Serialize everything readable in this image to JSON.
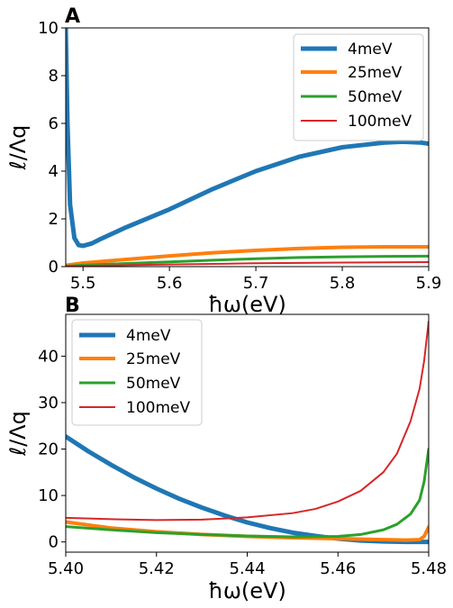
{
  "chart_data": [
    {
      "type": "line",
      "panel_label": "A",
      "xlabel": "ħω(eV)",
      "ylabel": "ℓ/Λq",
      "xlim": [
        5.48,
        5.9
      ],
      "ylim": [
        0,
        10
      ],
      "x_ticks": [
        5.5,
        5.6,
        5.7,
        5.8,
        5.9
      ],
      "y_ticks": [
        0,
        2,
        4,
        6,
        8,
        10
      ],
      "x_tick_labels": [
        "5.5",
        "5.6",
        "5.7",
        "5.8",
        "5.9"
      ],
      "y_tick_labels": [
        "0",
        "2",
        "4",
        "6",
        "8",
        "10"
      ],
      "legend_position": "top-right",
      "grid": false,
      "series": [
        {
          "name": "4meV",
          "color": "#1f77b4",
          "line_width": 5,
          "x": [
            5.48,
            5.482,
            5.485,
            5.49,
            5.495,
            5.5,
            5.51,
            5.52,
            5.55,
            5.6,
            5.65,
            5.7,
            5.75,
            5.8,
            5.85,
            5.87,
            5.89,
            5.9
          ],
          "y": [
            10,
            6,
            2.6,
            1.2,
            0.9,
            0.87,
            0.97,
            1.15,
            1.65,
            2.4,
            3.25,
            4.0,
            4.6,
            5.0,
            5.2,
            5.23,
            5.2,
            5.15
          ]
        },
        {
          "name": "25meV",
          "color": "#ff7f0e",
          "line_width": 4,
          "x": [
            5.48,
            5.5,
            5.55,
            5.6,
            5.65,
            5.7,
            5.75,
            5.8,
            5.85,
            5.9
          ],
          "y": [
            0.05,
            0.15,
            0.3,
            0.45,
            0.58,
            0.68,
            0.76,
            0.81,
            0.83,
            0.83
          ]
        },
        {
          "name": "50meV",
          "color": "#2ca02c",
          "line_width": 3,
          "x": [
            5.48,
            5.5,
            5.55,
            5.6,
            5.65,
            5.7,
            5.75,
            5.8,
            5.85,
            5.9
          ],
          "y": [
            0.02,
            0.06,
            0.13,
            0.2,
            0.27,
            0.33,
            0.38,
            0.41,
            0.43,
            0.44
          ]
        },
        {
          "name": "100meV",
          "color": "#d62728",
          "line_width": 2,
          "x": [
            5.48,
            5.55,
            5.6,
            5.7,
            5.8,
            5.9
          ],
          "y": [
            0.02,
            0.06,
            0.09,
            0.14,
            0.17,
            0.19
          ]
        }
      ]
    },
    {
      "type": "line",
      "panel_label": "B",
      "xlabel": "ħω(eV)",
      "ylabel": "ℓ/Λq",
      "xlim": [
        5.4,
        5.48
      ],
      "ylim": [
        -2.2,
        49
      ],
      "x_ticks": [
        5.4,
        5.42,
        5.44,
        5.46,
        5.48
      ],
      "y_ticks": [
        0,
        10,
        20,
        30,
        40
      ],
      "x_tick_labels": [
        "5.40",
        "5.42",
        "5.44",
        "5.46",
        "5.48"
      ],
      "y_tick_labels": [
        "0",
        "10",
        "20",
        "30",
        "40"
      ],
      "legend_position": "top-left",
      "grid": false,
      "series": [
        {
          "name": "4meV",
          "color": "#1f77b4",
          "line_width": 5,
          "x": [
            5.4,
            5.405,
            5.41,
            5.415,
            5.42,
            5.425,
            5.43,
            5.435,
            5.44,
            5.445,
            5.45,
            5.455,
            5.46,
            5.465,
            5.47,
            5.475,
            5.48
          ],
          "y": [
            22.7,
            19.5,
            16.6,
            13.9,
            11.5,
            9.3,
            7.4,
            5.7,
            4.2,
            3.0,
            2.0,
            1.3,
            0.7,
            0.3,
            0.1,
            0.0,
            0.0
          ]
        },
        {
          "name": "25meV",
          "color": "#ff7f0e",
          "line_width": 4,
          "x": [
            5.4,
            5.41,
            5.42,
            5.43,
            5.44,
            5.45,
            5.46,
            5.47,
            5.475,
            5.478,
            5.479,
            5.48
          ],
          "y": [
            4.3,
            3.0,
            2.2,
            1.6,
            1.2,
            0.9,
            0.7,
            0.5,
            0.4,
            0.5,
            1.2,
            3.2
          ]
        },
        {
          "name": "50meV",
          "color": "#2ca02c",
          "line_width": 3,
          "x": [
            5.4,
            5.41,
            5.42,
            5.43,
            5.44,
            5.45,
            5.46,
            5.465,
            5.47,
            5.473,
            5.476,
            5.478,
            5.479,
            5.48
          ],
          "y": [
            3.3,
            2.6,
            2.0,
            1.6,
            1.3,
            1.1,
            1.2,
            1.6,
            2.6,
            3.8,
            6.0,
            9.0,
            13.0,
            20.0
          ]
        },
        {
          "name": "100meV",
          "color": "#d62728",
          "line_width": 2,
          "x": [
            5.4,
            5.41,
            5.42,
            5.43,
            5.44,
            5.45,
            5.455,
            5.46,
            5.465,
            5.47,
            5.473,
            5.476,
            5.478,
            5.479,
            5.48
          ],
          "y": [
            5.2,
            4.9,
            4.7,
            4.8,
            5.3,
            6.2,
            7.1,
            8.7,
            11.0,
            15.0,
            19.0,
            26.0,
            33.0,
            39.0,
            47.5
          ]
        }
      ]
    }
  ]
}
